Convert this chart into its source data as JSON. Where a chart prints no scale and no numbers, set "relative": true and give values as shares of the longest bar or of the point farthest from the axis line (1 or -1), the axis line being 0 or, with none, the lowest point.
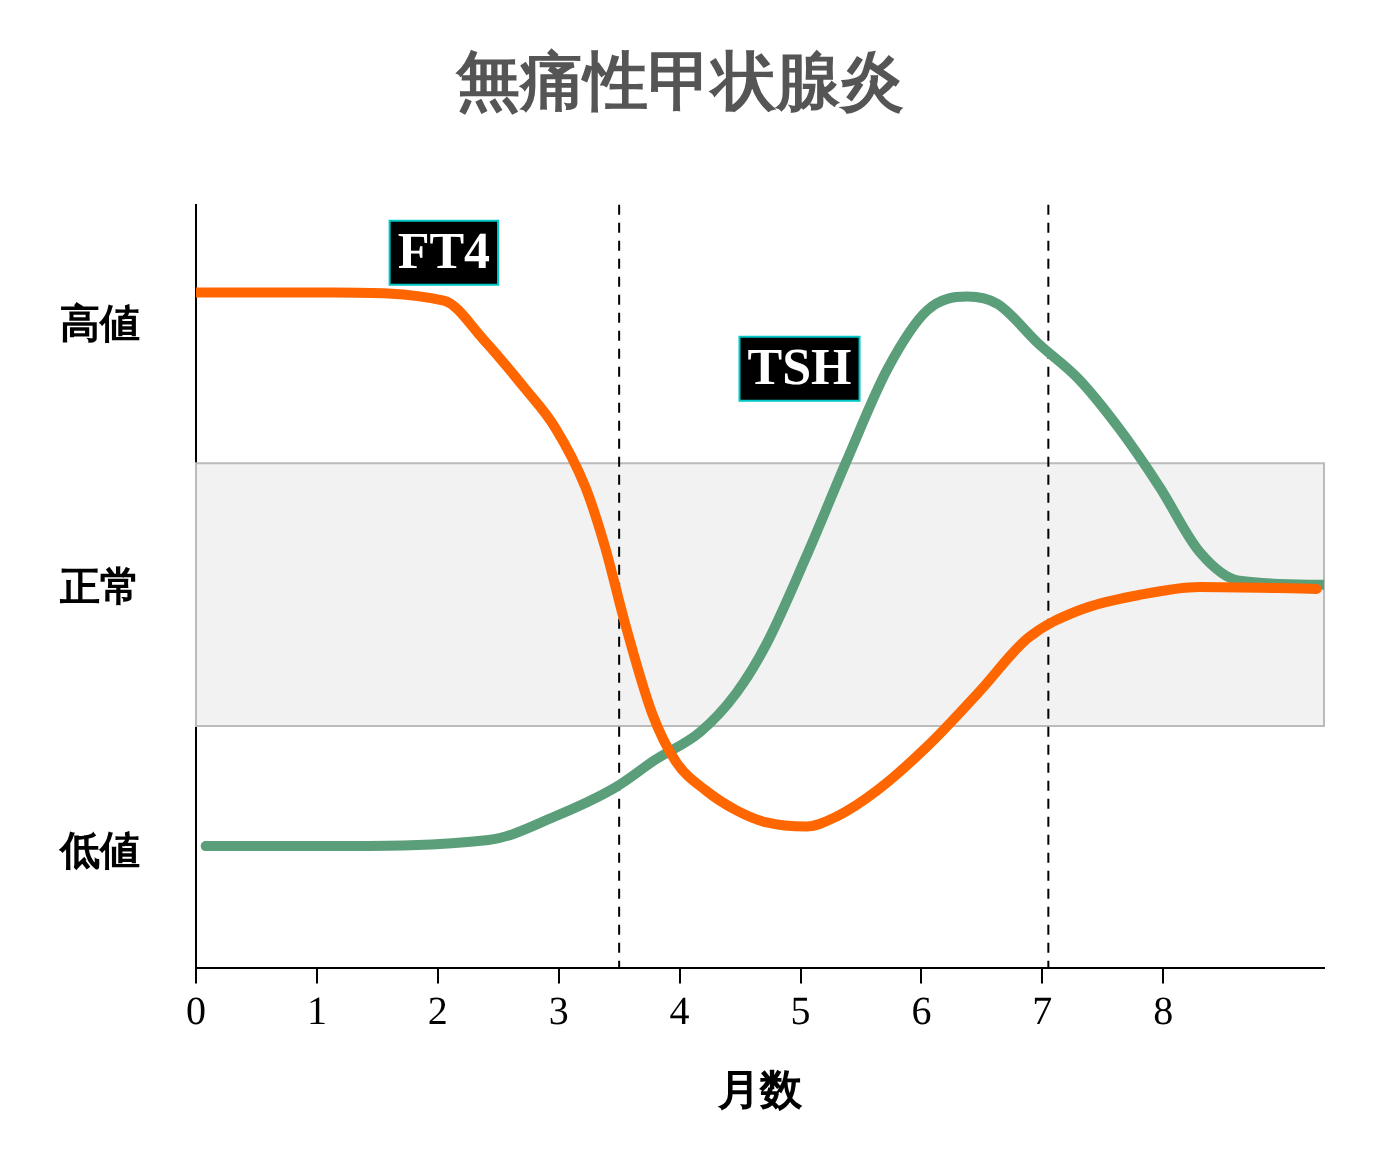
{
  "chart_data": {
    "type": "line",
    "title": "無痛性甲状腺炎",
    "xlabel": "月数",
    "relative": true,
    "xlim": [
      0,
      9.33
    ],
    "xticks": [
      0,
      1,
      2,
      3,
      4,
      5,
      6,
      7,
      8
    ],
    "annotations": [
      "高値",
      "正常",
      "低値"
    ],
    "grid": false,
    "legend": false,
    "marker": "none",
    "line_style": "solid",
    "bands": [
      {
        "axis": "y",
        "from": 0.358,
        "to": 0.747,
        "color": "#f2f2f2"
      }
    ],
    "ref_lines": [
      {
        "axis": "x",
        "value": 3.5,
        "line_style": "dashed",
        "color": "#000000"
      },
      {
        "axis": "x",
        "value": 7.05,
        "line_style": "dashed",
        "color": "#000000"
      }
    ],
    "series": [
      {
        "name": "FT4",
        "color": "#ff6600",
        "x": [
          0,
          1.13,
          2.05,
          2.38,
          2.72,
          2.97,
          3.22,
          3.38,
          3.55,
          3.77,
          3.97,
          4.22,
          4.47,
          4.72,
          5.05,
          5.3,
          5.63,
          6.05,
          6.47,
          6.88,
          7.3,
          7.8,
          8.3,
          9.27
        ],
        "values": [
          1.0,
          1.0,
          0.988,
          0.93,
          0.858,
          0.8,
          0.712,
          0.625,
          0.509,
          0.378,
          0.305,
          0.262,
          0.233,
          0.215,
          0.209,
          0.224,
          0.262,
          0.328,
          0.407,
          0.488,
          0.529,
          0.552,
          0.564,
          0.561
        ]
      },
      {
        "name": "TSH",
        "color": "#5a9e7a",
        "x": [
          0.08,
          1.13,
          2.42,
          2.97,
          3.47,
          3.8,
          4.17,
          4.47,
          4.72,
          5.05,
          5.38,
          5.72,
          6.05,
          6.38,
          6.63,
          6.97,
          7.3,
          7.63,
          7.97,
          8.3,
          8.63,
          9.33
        ],
        "values": [
          0.18,
          0.18,
          0.189,
          0.224,
          0.267,
          0.308,
          0.349,
          0.407,
          0.48,
          0.61,
          0.75,
          0.887,
          0.974,
          0.994,
          0.983,
          0.924,
          0.872,
          0.8,
          0.712,
          0.616,
          0.573,
          0.567
        ]
      }
    ]
  }
}
